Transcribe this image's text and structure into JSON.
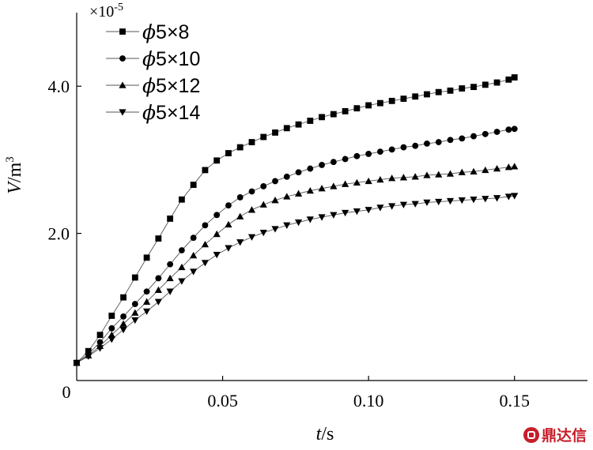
{
  "chart_data": {
    "type": "line",
    "xlabel_italic": "t",
    "xlabel_unit": "/s",
    "ylabel_italic": "V",
    "ylabel_unit": "/m",
    "ylabel_sup": "3",
    "multiplier": "×10",
    "multiplier_exp": "-5",
    "xlim": [
      0,
      0.175
    ],
    "ylim": [
      0,
      5.0
    ],
    "origin_label": "0",
    "xticks": [
      {
        "v": 0.05,
        "label": "0.05"
      },
      {
        "v": 0.1,
        "label": "0.10"
      },
      {
        "v": 0.15,
        "label": "0.15"
      }
    ],
    "yticks": [
      {
        "v": 2.0,
        "label": "2.0"
      },
      {
        "v": 4.0,
        "label": "4.0"
      }
    ],
    "x": [
      0.0,
      0.004,
      0.008,
      0.012,
      0.016,
      0.02,
      0.024,
      0.028,
      0.032,
      0.036,
      0.04,
      0.044,
      0.048,
      0.052,
      0.056,
      0.06,
      0.064,
      0.068,
      0.072,
      0.076,
      0.08,
      0.084,
      0.088,
      0.092,
      0.096,
      0.1,
      0.104,
      0.108,
      0.112,
      0.116,
      0.12,
      0.124,
      0.128,
      0.132,
      0.136,
      0.14,
      0.144,
      0.148,
      0.15
    ],
    "series": [
      {
        "name_prefix": "ϕ",
        "name": "5×8",
        "marker": "square",
        "values": [
          0.24,
          0.4,
          0.62,
          0.88,
          1.13,
          1.4,
          1.67,
          1.93,
          2.2,
          2.46,
          2.66,
          2.86,
          2.99,
          3.09,
          3.17,
          3.24,
          3.31,
          3.37,
          3.43,
          3.48,
          3.53,
          3.58,
          3.62,
          3.66,
          3.7,
          3.74,
          3.77,
          3.8,
          3.83,
          3.86,
          3.89,
          3.92,
          3.94,
          3.97,
          3.99,
          4.02,
          4.05,
          4.09,
          4.12
        ]
      },
      {
        "name_prefix": "ϕ",
        "name": "5×10",
        "marker": "circle",
        "values": [
          0.24,
          0.36,
          0.52,
          0.71,
          0.87,
          1.04,
          1.21,
          1.39,
          1.58,
          1.77,
          1.94,
          2.11,
          2.25,
          2.38,
          2.49,
          2.57,
          2.64,
          2.71,
          2.77,
          2.83,
          2.88,
          2.93,
          2.97,
          3.01,
          3.05,
          3.08,
          3.11,
          3.14,
          3.17,
          3.19,
          3.22,
          3.24,
          3.27,
          3.29,
          3.32,
          3.35,
          3.38,
          3.41,
          3.42
        ]
      },
      {
        "name_prefix": "ϕ",
        "name": "5×12",
        "marker": "triangle-up",
        "values": [
          0.24,
          0.34,
          0.47,
          0.62,
          0.77,
          0.92,
          1.07,
          1.23,
          1.39,
          1.54,
          1.7,
          1.85,
          1.99,
          2.12,
          2.23,
          2.32,
          2.39,
          2.45,
          2.5,
          2.54,
          2.58,
          2.61,
          2.64,
          2.67,
          2.69,
          2.71,
          2.73,
          2.75,
          2.76,
          2.77,
          2.79,
          2.8,
          2.81,
          2.83,
          2.84,
          2.86,
          2.88,
          2.9,
          2.91
        ]
      },
      {
        "name_prefix": "ϕ",
        "name": "5×14",
        "marker": "triangle-down",
        "values": [
          0.24,
          0.33,
          0.44,
          0.56,
          0.69,
          0.82,
          0.94,
          1.07,
          1.21,
          1.35,
          1.48,
          1.6,
          1.71,
          1.8,
          1.88,
          1.95,
          2.01,
          2.06,
          2.11,
          2.15,
          2.19,
          2.22,
          2.25,
          2.28,
          2.3,
          2.32,
          2.35,
          2.37,
          2.39,
          2.4,
          2.42,
          2.43,
          2.44,
          2.45,
          2.46,
          2.47,
          2.48,
          2.5,
          2.51
        ]
      }
    ],
    "legend_position": "top-left",
    "grid": false
  },
  "watermark": {
    "text": "鼎达信"
  }
}
